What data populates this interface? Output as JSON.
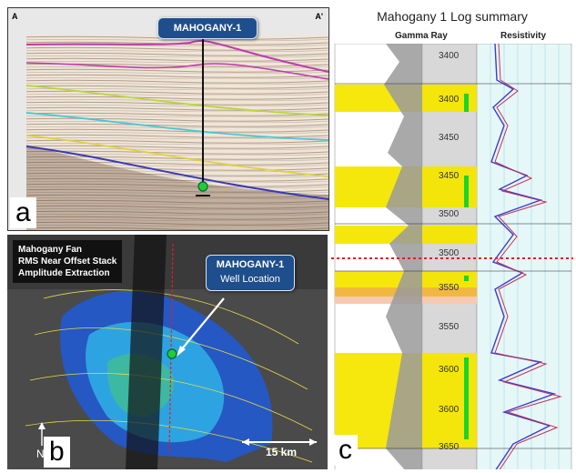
{
  "panel_a": {
    "letter": "a",
    "section_start_label": "A",
    "section_end_label": "A'",
    "well_callout": "MAHOGANY-1"
  },
  "panel_b": {
    "letter": "b",
    "map_title_lines": [
      "Mahogany Fan",
      "RMS Near Offset Stack",
      "Amplitude Extraction"
    ],
    "well_callout_line1": "MAHOGANY-1",
    "well_callout_line2": "Well Location",
    "scale_label": "15 km",
    "north_label": "N"
  },
  "panel_c": {
    "letter": "c",
    "title": "Mahogany 1 Log summary",
    "track_left_label": "Gamma Ray",
    "track_right_label": "Resistivity",
    "depth_labels": [
      "3400",
      "3400",
      "3450",
      "3450",
      "3500",
      "3500",
      "3550",
      "3550",
      "3600",
      "3600",
      "3650"
    ]
  },
  "colors": {
    "callout_blue": "#1f4e8c",
    "sand_yellow": "#f5e600",
    "shale_gray": "#9a9a9a",
    "resistivity_blue": "#3b3bd6",
    "pick_red": "#e02020"
  }
}
